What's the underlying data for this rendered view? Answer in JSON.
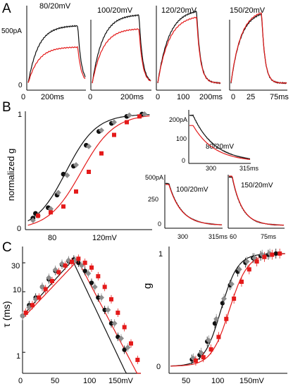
{
  "colors": {
    "wt": "#111111",
    "mutant": "#e41a1a",
    "grey": "#8c8c8c"
  },
  "chart_data": [
    {
      "panel": "A",
      "type": "line",
      "ylabel": "500pA",
      "traces": [
        {
          "title": "80/20mV",
          "ticks": [
            "0",
            "200ms"
          ],
          "black_amp": 0.78,
          "red_amp": 0.49,
          "plateau_frac": 0.87
        },
        {
          "title": "100/20mV",
          "ticks": [
            "0",
            "200ms"
          ],
          "black_amp": 0.93,
          "red_amp": 0.74,
          "plateau_frac": 0.8
        },
        {
          "title": "120/20mV",
          "ticks": [
            "0",
            "100",
            "200ms"
          ],
          "black_amp": 1.0,
          "red_amp": 0.92,
          "plateau_frac": 0.62
        },
        {
          "title": "150/20mV",
          "ticks": [
            "0",
            "25",
            "75ms"
          ],
          "black_amp": 0.98,
          "red_amp": 1.0,
          "plateau_frac": 0.55
        }
      ]
    },
    {
      "panel": "B",
      "type": "scatter",
      "ylabel": "normalized g",
      "xticks": [
        "80",
        "120mV"
      ],
      "yticks": [
        "0",
        "1"
      ],
      "xlim": [
        60,
        160
      ],
      "ylim": [
        0,
        1
      ],
      "series": [
        {
          "color": "#111111",
          "x": [
            66,
            68,
            78,
            85,
            90,
            98,
            108,
            118,
            128,
            140,
            152
          ],
          "y": [
            0.1,
            0.14,
            0.19,
            0.3,
            0.48,
            0.55,
            0.73,
            0.85,
            0.92,
            0.98,
            1.0
          ]
        },
        {
          "color": "#8c8c8c",
          "x": [
            66,
            70,
            80,
            86,
            93,
            100,
            110,
            120,
            130,
            142,
            154
          ],
          "y": [
            0.08,
            0.12,
            0.18,
            0.32,
            0.47,
            0.56,
            0.72,
            0.86,
            0.93,
            0.99,
            1.0
          ]
        },
        {
          "color": "#e41a1a",
          "x": [
            70,
            80,
            90,
            100,
            110,
            120,
            130,
            140,
            150
          ],
          "y": [
            0.12,
            0.15,
            0.2,
            0.33,
            0.5,
            0.66,
            0.82,
            0.93,
            0.98
          ]
        }
      ],
      "insets": [
        {
          "title": "80/20mV",
          "yticks": [
            "200pA",
            "100",
            "0"
          ],
          "xticks": [
            "300",
            "315ms"
          ]
        },
        {
          "title": "100/20mV",
          "yticks": [
            "500pA",
            "250",
            "0"
          ],
          "xticks": [
            "300",
            "315ms"
          ]
        },
        {
          "title": "150/20mV",
          "yticks": [],
          "xticks": [
            "60",
            "75ms"
          ]
        }
      ]
    },
    {
      "panel": "C-left",
      "type": "scatter",
      "ylabel": "τ (ms)",
      "xticks": [
        "0",
        "50",
        "100",
        "150mV"
      ],
      "yticks": [
        "1",
        "10",
        "30"
      ],
      "xlim": [
        0,
        180
      ],
      "ylim": [
        0.45,
        50
      ],
      "series": [
        {
          "color": "#111111",
          "x": [
            0,
            10,
            20,
            30,
            40,
            50,
            60,
            70,
            78,
            85,
            95,
            105,
            115,
            125,
            135,
            145,
            155
          ],
          "y": [
            4,
            6,
            8,
            12,
            16,
            22,
            28,
            32,
            34,
            30,
            22,
            14,
            8,
            5,
            3,
            1.8,
            1.1
          ]
        },
        {
          "color": "#8c8c8c",
          "x": [
            0,
            10,
            20,
            30,
            40,
            50,
            60,
            70,
            80,
            90,
            100,
            110,
            120,
            130,
            140,
            150,
            160
          ],
          "y": [
            4,
            5.5,
            7.5,
            12,
            17,
            23,
            29,
            33,
            33,
            27,
            20,
            12,
            8,
            5,
            3,
            1.7,
            1.2
          ]
        },
        {
          "color": "#e41a1a",
          "x": [
            5,
            15,
            25,
            35,
            45,
            55,
            65,
            75,
            85,
            95,
            105,
            115,
            125,
            135,
            145,
            155,
            165,
            175
          ],
          "y": [
            4.5,
            6,
            8,
            11,
            15,
            21,
            27,
            31,
            35,
            30,
            25,
            18,
            12,
            7.5,
            4.5,
            2.6,
            1.4,
            0.75
          ]
        }
      ]
    },
    {
      "panel": "C-right",
      "type": "scatter",
      "ylabel": "g",
      "xticks": [
        "50",
        "100",
        "150mV"
      ],
      "yticks": [
        "0",
        "1"
      ],
      "xlim": [
        20,
        175
      ],
      "ylim": [
        0,
        1
      ],
      "series": [
        {
          "color": "#111111",
          "x": [
            50,
            60,
            70,
            80,
            90,
            100,
            110,
            120,
            130,
            140,
            150,
            160
          ],
          "y": [
            0.06,
            0.1,
            0.22,
            0.38,
            0.56,
            0.72,
            0.84,
            0.92,
            0.96,
            0.98,
            0.99,
            1.0
          ]
        },
        {
          "color": "#8c8c8c",
          "x": [
            52,
            62,
            72,
            82,
            92,
            102,
            112,
            122,
            132,
            142,
            152
          ],
          "y": [
            0.07,
            0.12,
            0.23,
            0.42,
            0.6,
            0.73,
            0.86,
            0.93,
            0.96,
            0.99,
            1.0
          ]
        },
        {
          "color": "#e41a1a",
          "x": [
            55,
            65,
            75,
            85,
            95,
            105,
            115,
            125,
            135,
            145,
            155,
            165
          ],
          "y": [
            0.05,
            0.08,
            0.15,
            0.26,
            0.42,
            0.6,
            0.75,
            0.86,
            0.93,
            0.97,
            0.99,
            1.0
          ]
        }
      ]
    }
  ],
  "labels": {
    "A": "A",
    "B": "B",
    "C": "C"
  }
}
